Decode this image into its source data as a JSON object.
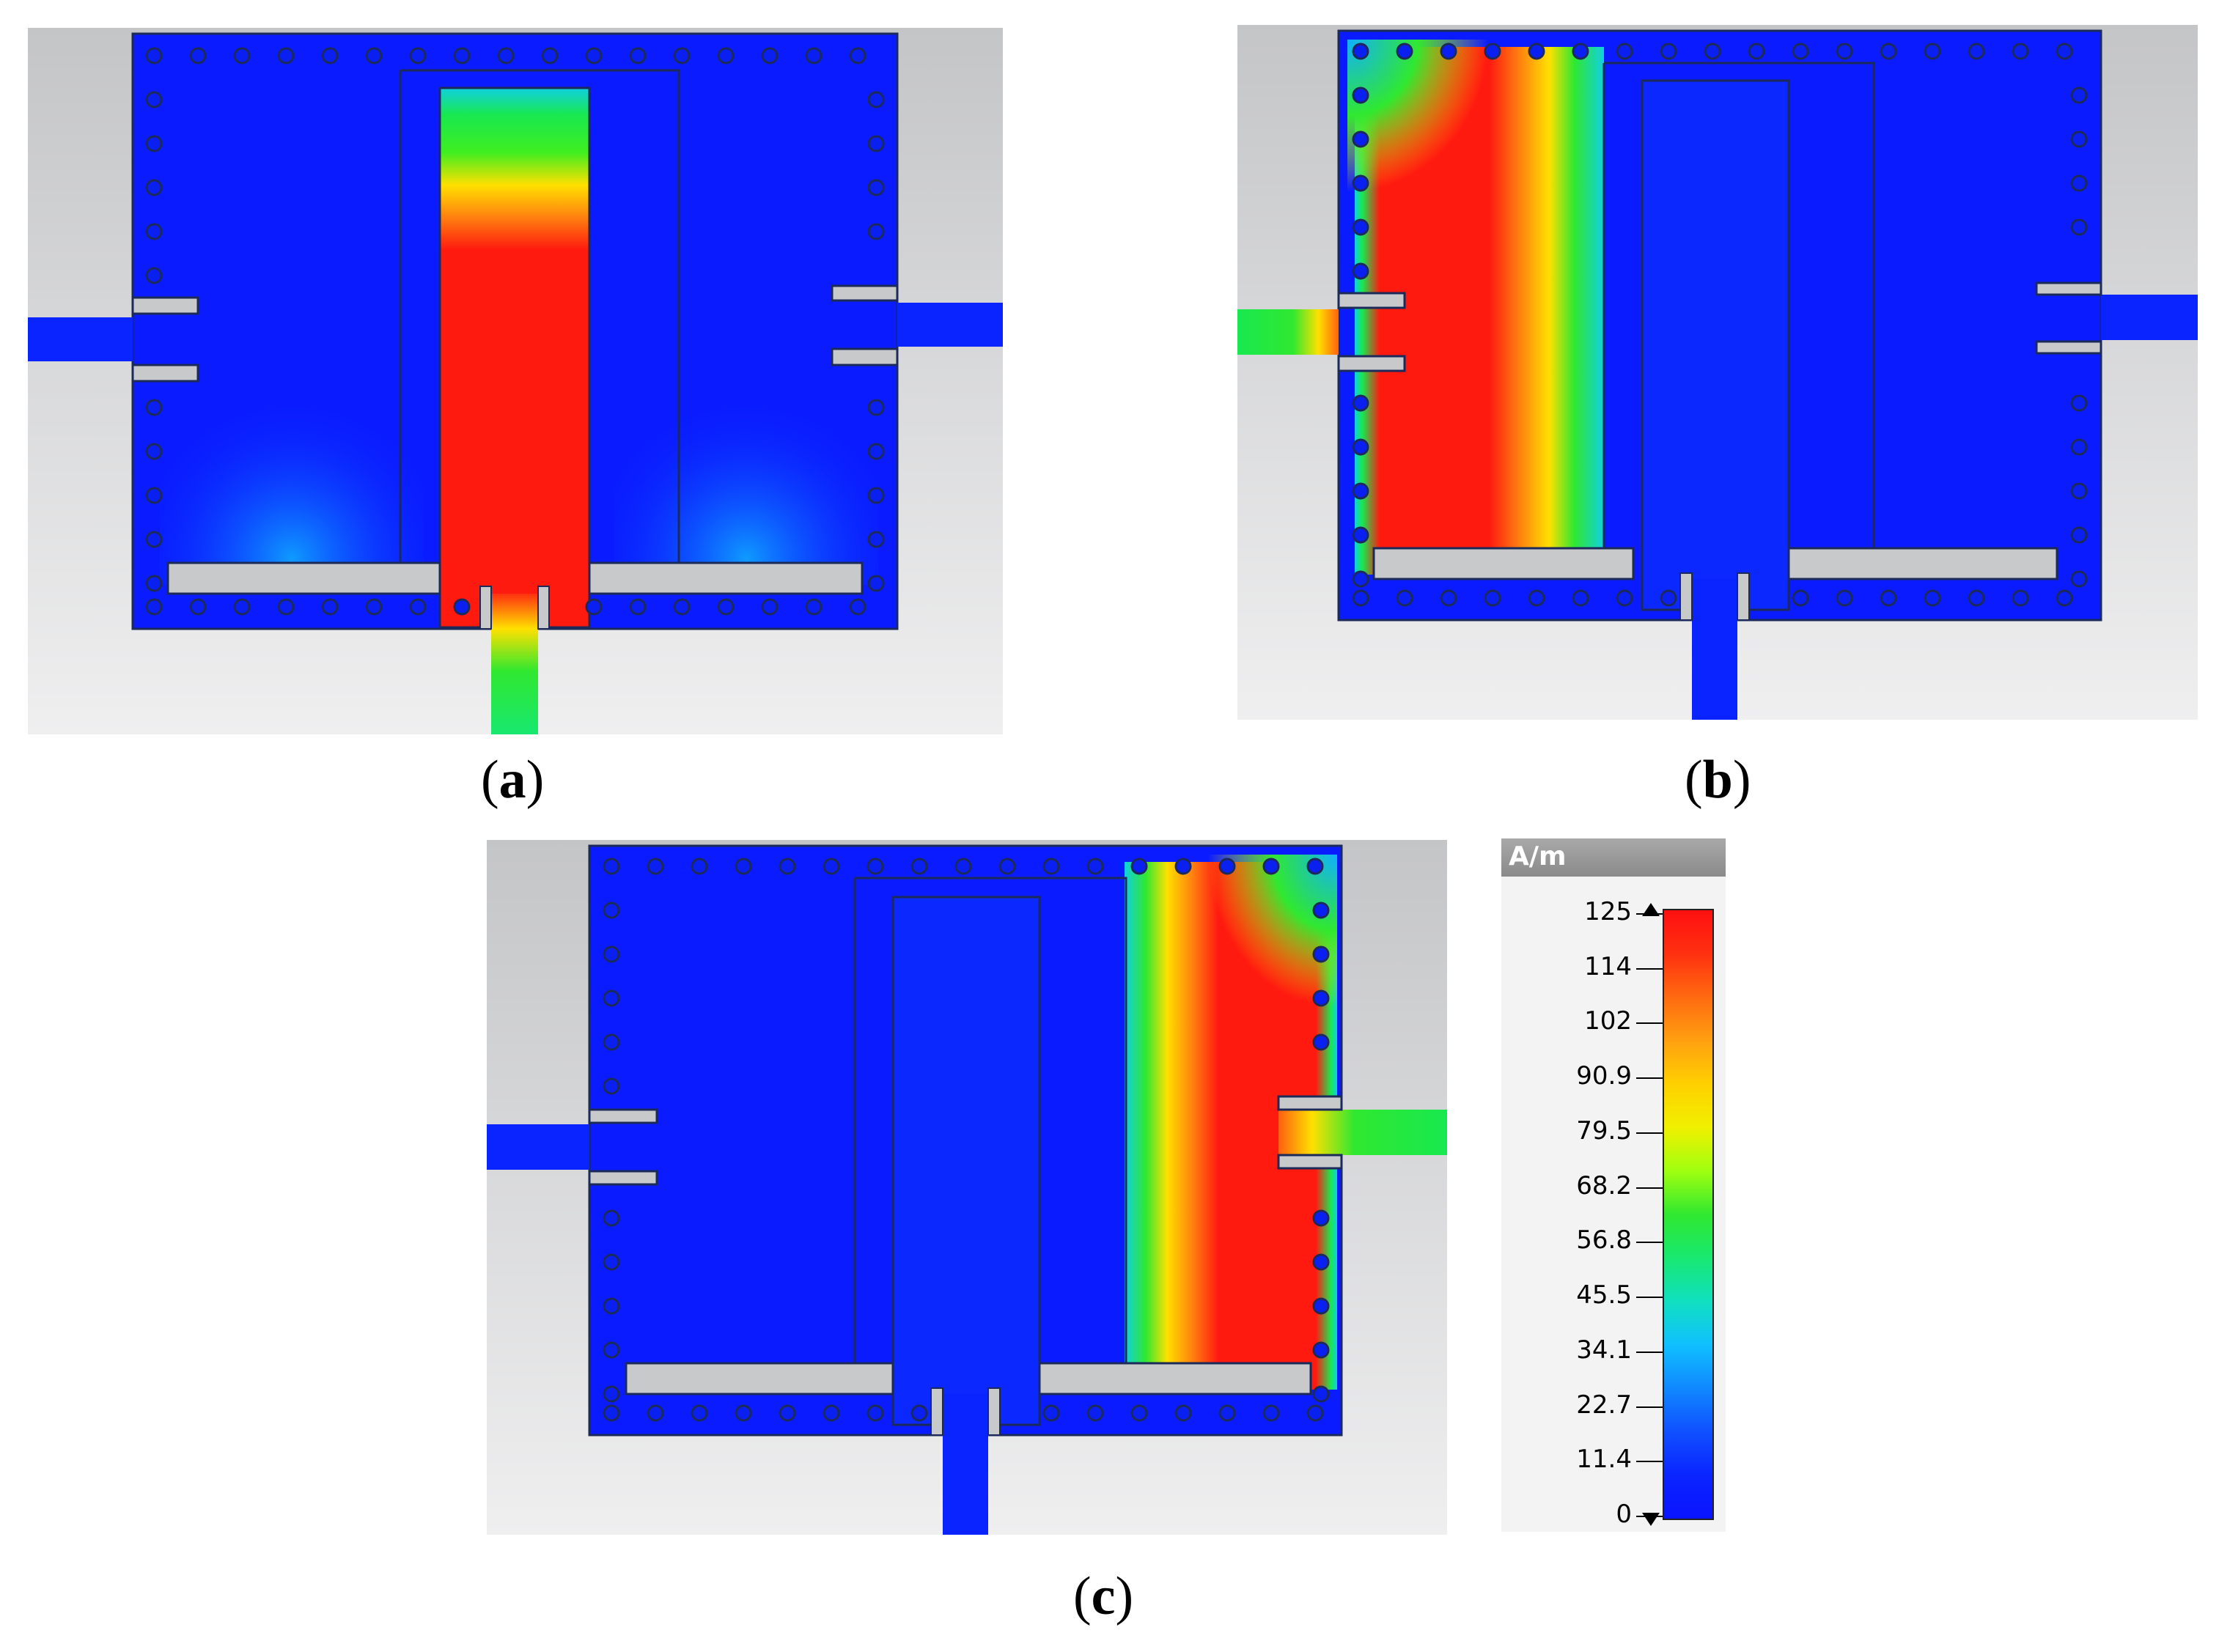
{
  "colors": {
    "background_gray": "#c7c8ca",
    "substrate_blue": "#0a1cff",
    "slot_gray": "#c8c9cb",
    "via_dark": "#1c2a5a",
    "field_red": "#ff1a10",
    "field_yellow": "#ffe800",
    "field_green": "#18e830",
    "field_cyan": "#10d0f0"
  },
  "panels": [
    {
      "id": "a",
      "caption": "a"
    },
    {
      "id": "b",
      "caption": "b"
    },
    {
      "id": "c",
      "caption": "c"
    }
  ],
  "legend": {
    "unit": "A/m",
    "ticks": [
      "125",
      "114",
      "102",
      "90.9",
      "79.5",
      "68.2",
      "56.8",
      "45.5",
      "34.1",
      "22.7",
      "11.4",
      "0"
    ],
    "scale_top_marker": "up-triangle-icon",
    "scale_bottom_marker": "down-triangle-icon",
    "gradient": [
      "#ff1010",
      "#ff3010",
      "#ff6a10",
      "#ffa010",
      "#ffd000",
      "#f0f000",
      "#a0ff10",
      "#30e830",
      "#18e870",
      "#10e0c0",
      "#10c0ff",
      "#1088ff",
      "#1050ff",
      "#0a24ff",
      "#0a14ff"
    ]
  }
}
